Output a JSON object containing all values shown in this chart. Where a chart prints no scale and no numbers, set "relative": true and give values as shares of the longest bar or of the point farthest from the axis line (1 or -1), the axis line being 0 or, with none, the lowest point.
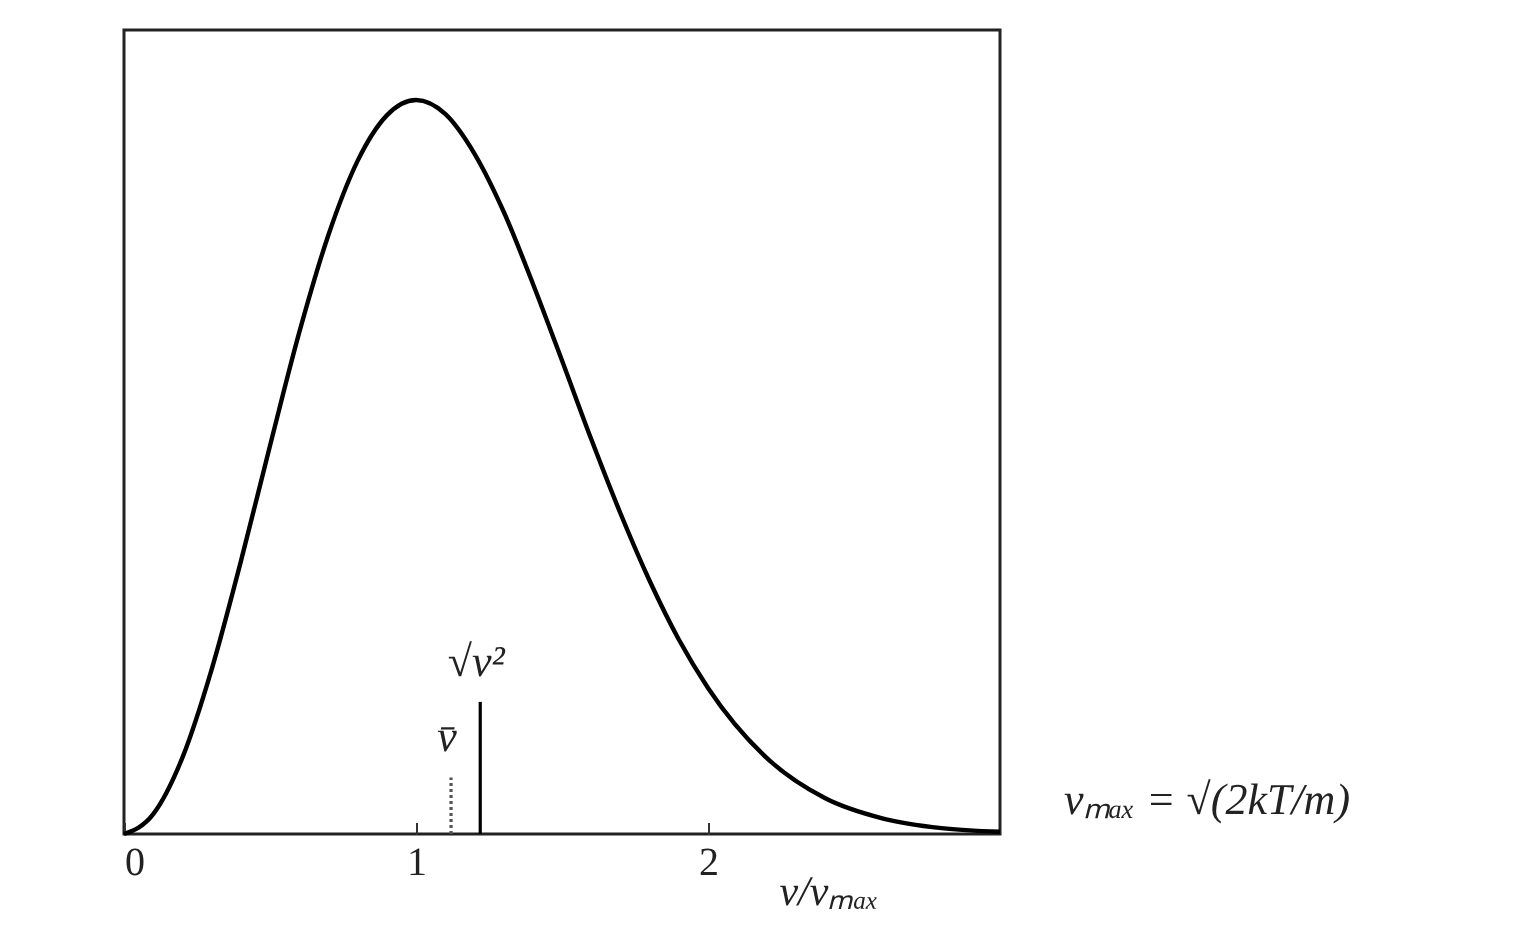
{
  "chart_data": {
    "type": "line",
    "relative": true,
    "xlabel": "v/vₘₐₓ",
    "xlim": [
      0,
      3.0
    ],
    "xticks": [
      0,
      1,
      2
    ],
    "grid": false,
    "marker": "none",
    "line_style": "solid",
    "series": [
      {
        "color": "#000000",
        "x": [
          0,
          0.1,
          0.2,
          0.3,
          0.4,
          0.5,
          0.6,
          0.7,
          0.8,
          0.9,
          1.0,
          1.1,
          1.2,
          1.3,
          1.4,
          1.5,
          1.6,
          1.7,
          1.8,
          1.9,
          2.0,
          2.2,
          2.4,
          2.6,
          2.8,
          3.0
        ],
        "values": [
          0,
          0.027,
          0.104,
          0.224,
          0.371,
          0.529,
          0.683,
          0.816,
          0.917,
          0.979,
          1,
          0.981,
          0.927,
          0.848,
          0.75,
          0.645,
          0.538,
          0.437,
          0.345,
          0.265,
          0.199,
          0.104,
          0.049,
          0.021,
          0.008,
          0.003
        ]
      }
    ],
    "ref_lines": [
      {
        "axis": "x",
        "value": 1.12,
        "label": "v̄",
        "line_style": "dotted",
        "color": "#555555"
      },
      {
        "axis": "x",
        "value": 1.22,
        "label": "√v²",
        "line_style": "solid",
        "color": "#000000"
      }
    ],
    "annotations": [
      "vₘₐₓ = √(2kT/m)"
    ]
  }
}
